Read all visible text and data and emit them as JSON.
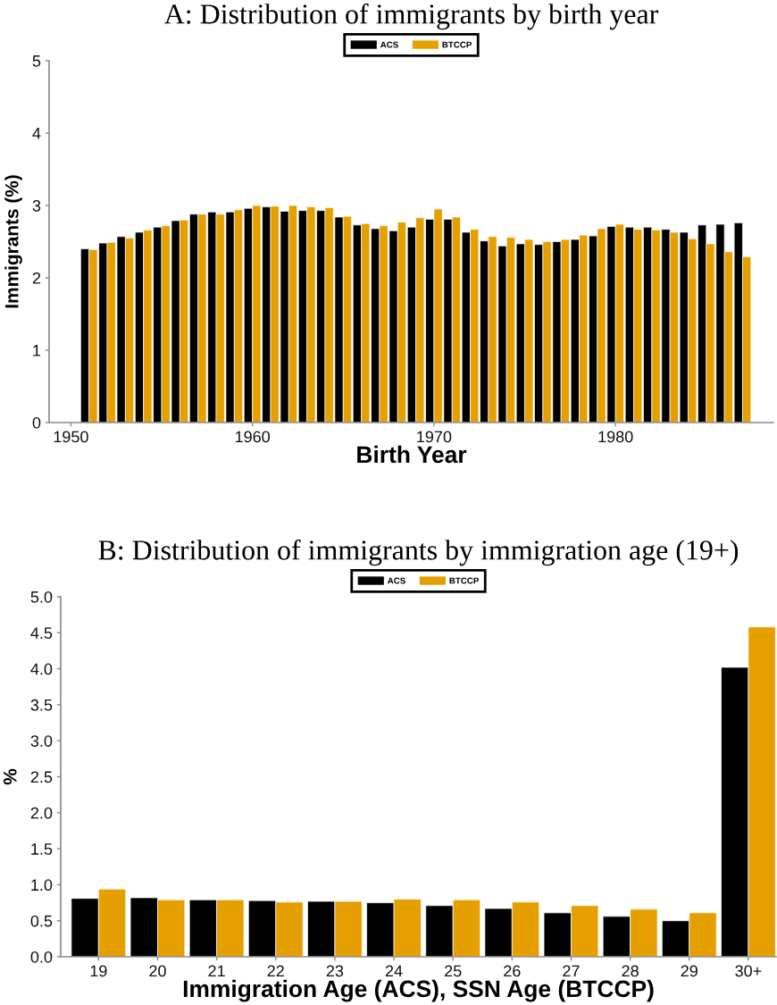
{
  "chart_data": [
    {
      "type": "bar",
      "title": "A: Distribution of immigrants by birth year",
      "xlabel": "Birth Year",
      "ylabel": "Immigrants (%)",
      "x": [
        1951,
        1952,
        1953,
        1954,
        1955,
        1956,
        1957,
        1958,
        1959,
        1960,
        1961,
        1962,
        1963,
        1964,
        1965,
        1966,
        1967,
        1968,
        1969,
        1970,
        1971,
        1972,
        1973,
        1974,
        1975,
        1976,
        1977,
        1978,
        1979,
        1980,
        1981,
        1982,
        1983,
        1984,
        1985,
        1986,
        1987
      ],
      "series": [
        {
          "name": "ACS",
          "color": "#000000",
          "values": [
            2.4,
            2.48,
            2.57,
            2.63,
            2.7,
            2.79,
            2.88,
            2.91,
            2.91,
            2.96,
            2.98,
            2.92,
            2.93,
            2.93,
            2.84,
            2.73,
            2.68,
            2.65,
            2.7,
            2.81,
            2.81,
            2.63,
            2.51,
            2.44,
            2.47,
            2.46,
            2.5,
            2.53,
            2.58,
            2.71,
            2.7,
            2.7,
            2.67,
            2.63,
            2.73,
            2.74,
            2.76
          ]
        },
        {
          "name": "BTCCP",
          "color": "#e69f00",
          "values": [
            2.39,
            2.49,
            2.55,
            2.66,
            2.72,
            2.8,
            2.88,
            2.88,
            2.94,
            3.0,
            2.99,
            3.0,
            2.98,
            2.97,
            2.85,
            2.75,
            2.72,
            2.77,
            2.83,
            2.95,
            2.84,
            2.67,
            2.57,
            2.56,
            2.53,
            2.5,
            2.53,
            2.59,
            2.68,
            2.74,
            2.67,
            2.66,
            2.63,
            2.54,
            2.47,
            2.36,
            2.29
          ]
        }
      ],
      "xlim": [
        1948.8,
        1988.7
      ],
      "xticks": [
        1950,
        1960,
        1970,
        1980
      ],
      "ylim": [
        0,
        5
      ],
      "yticks": [
        0,
        1,
        2,
        3,
        4,
        5
      ],
      "legend": "top"
    },
    {
      "type": "bar",
      "title": "B: Distribution of immigrants by immigration age (19+)",
      "xlabel": "Immigration Age (ACS), SSN Age (BTCCP)",
      "ylabel": "%",
      "categories": [
        "19",
        "20",
        "21",
        "22",
        "23",
        "24",
        "25",
        "26",
        "27",
        "28",
        "29",
        "30+"
      ],
      "series": [
        {
          "name": "ACS",
          "color": "#000000",
          "values": [
            0.81,
            0.82,
            0.79,
            0.78,
            0.77,
            0.75,
            0.71,
            0.67,
            0.61,
            0.56,
            0.5,
            4.02
          ]
        },
        {
          "name": "BTCCP",
          "color": "#e69f00",
          "values": [
            0.94,
            0.79,
            0.79,
            0.76,
            0.77,
            0.8,
            0.79,
            0.76,
            0.71,
            0.66,
            0.61,
            4.58
          ]
        }
      ],
      "ylim": [
        0,
        5
      ],
      "yticks": [
        {
          "value": 0,
          "label": "0.0"
        },
        0.5,
        {
          "value": 1,
          "label": "1.0"
        },
        1.5,
        {
          "value": 2,
          "label": "2.0"
        },
        2.5,
        {
          "value": 3,
          "label": "3.0"
        },
        3.5,
        {
          "value": 4,
          "label": "4.0"
        },
        4.5,
        {
          "value": 5,
          "label": "5.0"
        }
      ],
      "legend": "top"
    }
  ]
}
